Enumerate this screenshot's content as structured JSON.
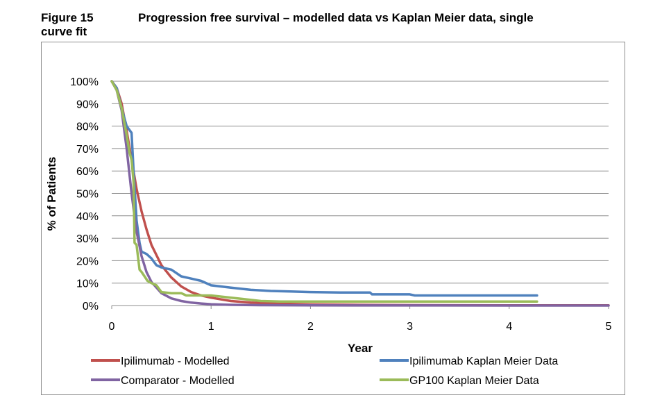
{
  "figure": {
    "number": "Figure 15",
    "number_line2": "curve fit",
    "title": "Progression free survival – modelled data vs Kaplan Meier data, single"
  },
  "chart_data": {
    "type": "line",
    "xlabel": "Year",
    "ylabel": "% of Patients",
    "xlim": [
      0,
      5
    ],
    "ylim": [
      0,
      100
    ],
    "x_ticks": [
      "0",
      "1",
      "2",
      "3",
      "4",
      "5"
    ],
    "y_ticks": [
      "0%",
      "10%",
      "20%",
      "30%",
      "40%",
      "50%",
      "60%",
      "70%",
      "80%",
      "90%",
      "100%"
    ],
    "grid": "horizontal",
    "legend_position": "bottom",
    "series": [
      {
        "name": "Ipilimumab - Modelled",
        "color": "#c0504d",
        "x": [
          0,
          0.05,
          0.1,
          0.15,
          0.2,
          0.25,
          0.3,
          0.35,
          0.4,
          0.5,
          0.6,
          0.7,
          0.8,
          0.9,
          1.0,
          1.2,
          1.4,
          1.6,
          2.0,
          2.5,
          3.0,
          4.0,
          5.0
        ],
        "y": [
          100,
          97,
          90,
          78,
          65,
          52,
          42,
          34,
          27,
          18,
          12.5,
          8.5,
          6,
          4.5,
          3.5,
          2,
          1.3,
          0.9,
          0.5,
          0.3,
          0.2,
          0.1,
          0.05
        ]
      },
      {
        "name": "Ipilimumab Kaplan Meier Data",
        "color": "#4f81bd",
        "x": [
          0,
          0.05,
          0.1,
          0.15,
          0.2,
          0.22,
          0.25,
          0.28,
          0.3,
          0.35,
          0.4,
          0.45,
          0.5,
          0.6,
          0.7,
          0.8,
          0.9,
          1.0,
          1.2,
          1.4,
          1.6,
          1.8,
          2.0,
          2.3,
          2.6,
          2.62,
          3.0,
          3.05,
          3.5,
          4.0,
          4.28
        ],
        "y": [
          100,
          97,
          88,
          80,
          77,
          60,
          38,
          28,
          24,
          23,
          21,
          18,
          17,
          16,
          13,
          12,
          11,
          9,
          8,
          7,
          6.5,
          6.3,
          6,
          5.8,
          5.8,
          5,
          5,
          4.5,
          4.5,
          4.5,
          4.5
        ]
      },
      {
        "name": "Comparator - Modelled",
        "color": "#8064a2",
        "x": [
          0,
          0.05,
          0.1,
          0.15,
          0.2,
          0.25,
          0.3,
          0.35,
          0.4,
          0.5,
          0.6,
          0.7,
          0.8,
          0.9,
          1.0,
          1.2,
          1.5,
          2.0,
          3.0,
          4.0,
          5.0
        ],
        "y": [
          100,
          96,
          87,
          70,
          50,
          33,
          22,
          15,
          10.5,
          5.5,
          3.2,
          2,
          1.3,
          0.9,
          0.6,
          0.3,
          0.15,
          0.05,
          0.02,
          0.01,
          0
        ]
      },
      {
        "name": "GP100 Kaplan Meier Data",
        "color": "#9bbb59",
        "x": [
          0,
          0.05,
          0.1,
          0.15,
          0.18,
          0.2,
          0.22,
          0.23,
          0.25,
          0.28,
          0.3,
          0.33,
          0.36,
          0.4,
          0.45,
          0.5,
          0.6,
          0.7,
          0.75,
          0.9,
          1.0,
          1.1,
          1.3,
          1.5,
          1.7,
          2.0,
          3.0,
          4.0,
          4.28
        ],
        "y": [
          100,
          96,
          88,
          76,
          68,
          65,
          55,
          28,
          27,
          16,
          15,
          13,
          11,
          10,
          9,
          6,
          5.5,
          5.5,
          4.5,
          4.5,
          4.5,
          4,
          3,
          2,
          1.8,
          1.8,
          1.8,
          1.8,
          1.8
        ]
      }
    ]
  }
}
